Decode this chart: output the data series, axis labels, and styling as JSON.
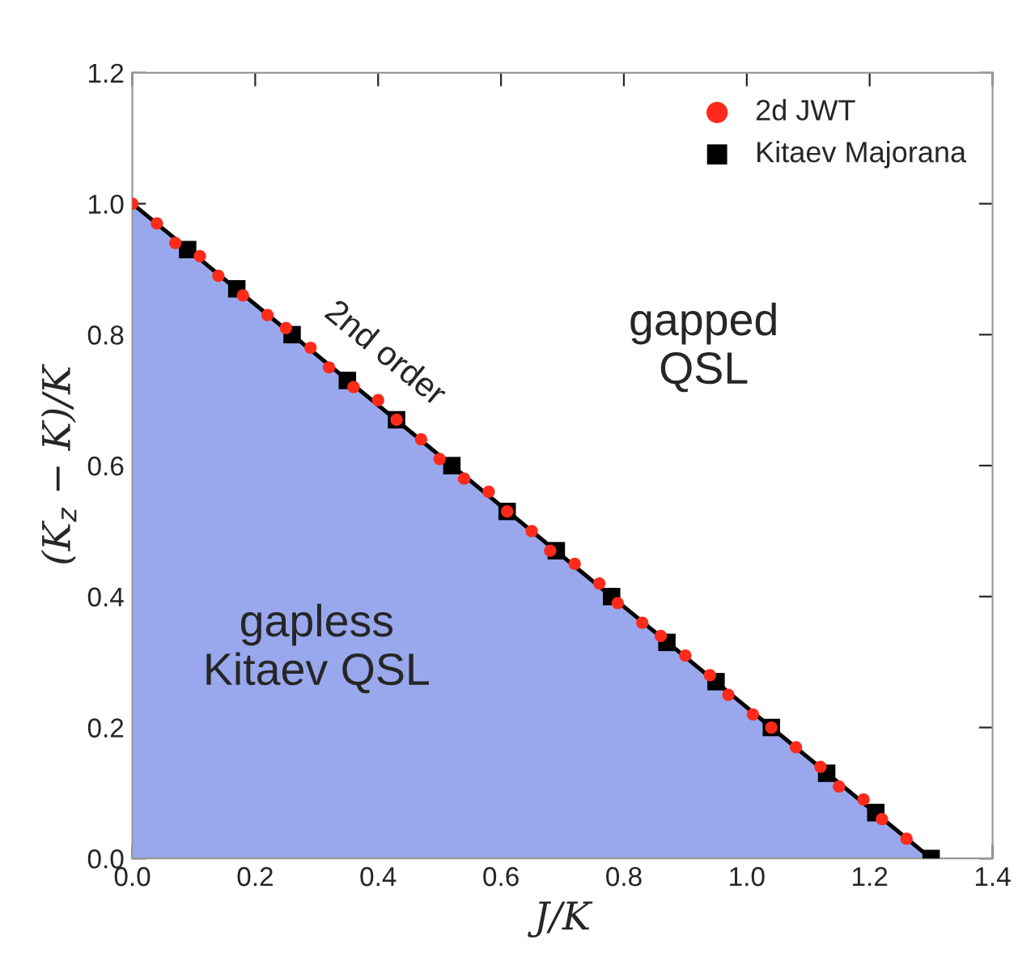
{
  "chart_data": {
    "type": "scatter",
    "xlabel": "J/K",
    "ylabel": "(K$_{z}$ − K)/K",
    "xlim": [
      0,
      1.4
    ],
    "ylim": [
      0,
      1.2
    ],
    "xticks": [
      {
        "value": 0,
        "label": "0.0"
      },
      0.2,
      0.4,
      0.6,
      0.8,
      {
        "value": 1,
        "label": "1.0"
      },
      1.2,
      1.4
    ],
    "yticks": [
      {
        "value": 0,
        "label": "0.0"
      },
      0.2,
      0.4,
      0.6,
      0.8,
      {
        "value": 1,
        "label": "1.0"
      },
      1.2
    ],
    "grid": false,
    "legend": "top right",
    "annotations": [
      "2nd order",
      "gapped\nQSL",
      "gapless\nKitaev QSL"
    ],
    "series": [
      {
        "type": "area",
        "color": "#99a8ec",
        "x": [
          0,
          1.3
        ],
        "values": [
          1,
          0
        ]
      },
      {
        "name": "2d JWT",
        "color": "#ff2a1a",
        "marker": "circle",
        "x": [
          0,
          0.04,
          0.07,
          0.11,
          0.14,
          0.18,
          0.22,
          0.25,
          0.29,
          0.32,
          0.36,
          0.4,
          0.43,
          0.47,
          0.5,
          0.54,
          0.58,
          0.61,
          0.65,
          0.68,
          0.72,
          0.76,
          0.79,
          0.83,
          0.86,
          0.9,
          0.94,
          0.97,
          1.01,
          1.04,
          1.08,
          1.12,
          1.15,
          1.19,
          1.22,
          1.26
        ],
        "values": [
          1,
          0.97,
          0.94,
          0.92,
          0.89,
          0.86,
          0.83,
          0.81,
          0.78,
          0.75,
          0.72,
          0.7,
          0.67,
          0.64,
          0.61,
          0.58,
          0.56,
          0.53,
          0.5,
          0.47,
          0.45,
          0.42,
          0.39,
          0.36,
          0.34,
          0.31,
          0.28,
          0.25,
          0.22,
          0.2,
          0.17,
          0.14,
          0.11,
          0.09,
          0.06,
          0.03
        ]
      },
      {
        "name": "Kitaev Majorana",
        "color": "#000000",
        "marker": "square",
        "x": [
          0.09,
          0.17,
          0.26,
          0.35,
          0.43,
          0.52,
          0.61,
          0.69,
          0.78,
          0.87,
          0.95,
          1.04,
          1.13,
          1.21,
          1.3
        ],
        "values": [
          0.93,
          0.87,
          0.8,
          0.73,
          0.67,
          0.6,
          0.53,
          0.47,
          0.4,
          0.33,
          0.27,
          0.2,
          0.13,
          0.07,
          0
        ]
      }
    ]
  }
}
